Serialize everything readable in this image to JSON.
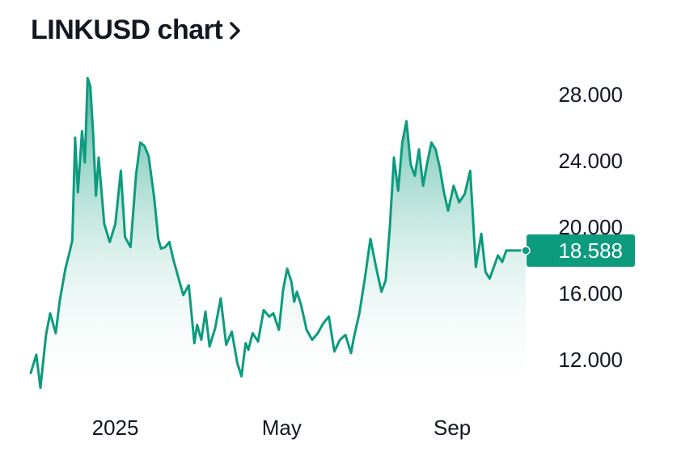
{
  "header": {
    "title": "LINKUSD chart",
    "chevron_icon": "chevron-right-icon"
  },
  "colors": {
    "line": "#0d9b7e",
    "fill_top": "#0d9b7e",
    "fill_bottom": "#ffffff",
    "price_tag": "#0d9b7e"
  },
  "chart_data": {
    "type": "area",
    "title": "LINKUSD chart",
    "xlabel": "",
    "ylabel": "",
    "grid": false,
    "y_axis_position": "right",
    "ylim": [
      9.6,
      29.5
    ],
    "y_ticks": [
      "28.000",
      "24.000",
      "20.000",
      "16.000",
      "12.000"
    ],
    "y_tick_values": [
      28,
      24,
      20,
      16,
      12
    ],
    "x_ticks": [
      "2025",
      "May",
      "Sep"
    ],
    "x_tick_dates": [
      "2025-01-01",
      "2025-05-01",
      "2025-09-01"
    ],
    "last_price": "18.588",
    "last_price_value": 18.588,
    "series": [
      {
        "x": [
          "2024-11-01",
          "2024-11-05",
          "2024-11-08",
          "2024-11-12",
          "2024-11-15",
          "2024-11-19",
          "2024-11-22",
          "2024-11-26",
          "2024-11-29",
          "2024-12-01",
          "2024-12-03",
          "2024-12-05",
          "2024-12-08",
          "2024-12-10",
          "2024-12-12",
          "2024-12-14",
          "2024-12-16",
          "2024-12-18",
          "2024-12-20",
          "2024-12-24",
          "2024-12-28",
          "2025-01-01",
          "2025-01-05",
          "2025-01-08",
          "2025-01-12",
          "2025-01-16",
          "2025-01-19",
          "2025-01-22",
          "2025-01-25",
          "2025-01-29",
          "2025-02-01",
          "2025-02-03",
          "2025-02-06",
          "2025-02-09",
          "2025-02-12",
          "2025-02-15",
          "2025-02-19",
          "2025-02-23",
          "2025-02-27",
          "2025-03-01",
          "2025-03-04",
          "2025-03-07",
          "2025-03-10",
          "2025-03-14",
          "2025-03-18",
          "2025-03-22",
          "2025-03-26",
          "2025-03-30",
          "2025-04-02",
          "2025-04-05",
          "2025-04-07",
          "2025-04-10",
          "2025-04-14",
          "2025-04-18",
          "2025-04-22",
          "2025-04-25",
          "2025-04-29",
          "2025-05-02",
          "2025-05-05",
          "2025-05-08",
          "2025-05-10",
          "2025-05-12",
          "2025-05-15",
          "2025-05-19",
          "2025-05-23",
          "2025-05-27",
          "2025-05-31",
          "2025-06-04",
          "2025-06-08",
          "2025-06-12",
          "2025-06-16",
          "2025-06-20",
          "2025-06-22",
          "2025-06-26",
          "2025-06-30",
          "2025-07-04",
          "2025-07-08",
          "2025-07-12",
          "2025-07-15",
          "2025-07-18",
          "2025-07-21",
          "2025-07-24",
          "2025-07-27",
          "2025-07-30",
          "2025-08-02",
          "2025-08-05",
          "2025-08-08",
          "2025-08-11",
          "2025-08-14",
          "2025-08-17",
          "2025-08-20",
          "2025-08-23",
          "2025-08-26",
          "2025-08-29",
          "2025-09-02",
          "2025-09-06",
          "2025-09-10",
          "2025-09-14",
          "2025-09-18",
          "2025-09-22",
          "2025-09-25",
          "2025-09-28",
          "2025-10-01",
          "2025-10-04",
          "2025-10-07",
          "2025-10-10",
          "2025-10-12",
          "2025-10-15",
          "2025-10-18",
          "2025-10-21",
          "2025-10-24"
        ],
        "y": [
          11.2,
          12.3,
          10.3,
          13.5,
          14.8,
          13.6,
          15.6,
          17.5,
          18.5,
          19.2,
          25.4,
          22.1,
          25.8,
          23.9,
          29.0,
          28.5,
          25.7,
          21.9,
          24.2,
          20.2,
          19.1,
          20.2,
          23.4,
          19.4,
          18.8,
          23.2,
          25.1,
          24.9,
          24.3,
          21.8,
          19.3,
          18.7,
          18.8,
          19.1,
          18.0,
          17.1,
          15.9,
          16.5,
          13.0,
          14.1,
          13.2,
          14.9,
          12.8,
          13.9,
          15.7,
          12.9,
          13.7,
          11.8,
          11.0,
          13.0,
          12.6,
          13.6,
          13.1,
          15.0,
          14.6,
          14.8,
          13.8,
          16.2,
          17.5,
          16.7,
          15.5,
          16.1,
          15.3,
          13.8,
          13.2,
          13.6,
          14.2,
          14.6,
          12.5,
          13.2,
          13.5,
          12.4,
          13.3,
          14.8,
          16.9,
          19.3,
          17.6,
          16.1,
          16.8,
          20.0,
          24.2,
          22.2,
          25.1,
          26.4,
          23.8,
          23.1,
          24.7,
          22.5,
          23.9,
          25.1,
          24.7,
          23.6,
          22.1,
          21.0,
          22.5,
          21.5,
          22.0,
          23.4,
          17.6,
          19.6,
          17.3,
          16.9,
          17.6,
          18.3,
          17.9,
          18.588,
          18.588,
          18.588,
          18.588,
          18.588,
          18.588
        ]
      }
    ]
  }
}
